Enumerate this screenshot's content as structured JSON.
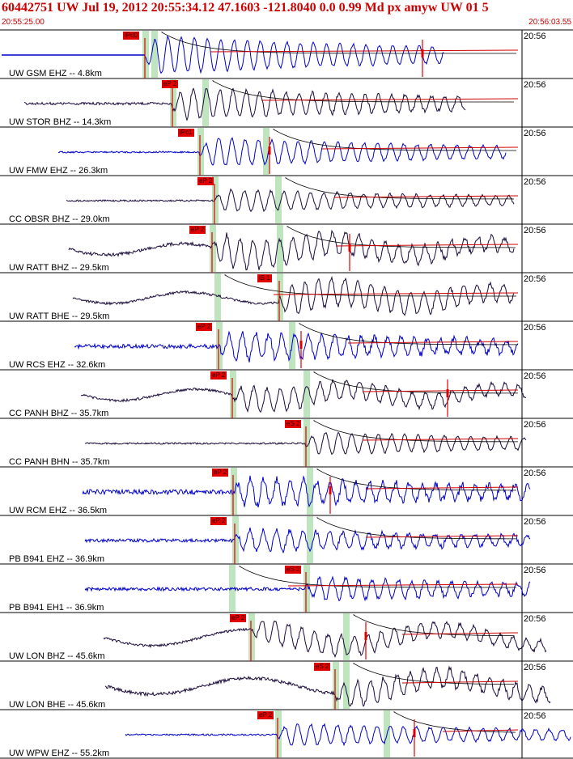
{
  "header": {
    "title": "60442751 UW Jul 19, 2012 20:55:34.12   47.1603 -121.8040  0.0 0.99 Md px amyw UW 01   5",
    "start_time": "20:55:25.00",
    "end_time": "20:56:03.55"
  },
  "colors": {
    "title": "#cc0000",
    "trace_blue": "#0000cc",
    "trace_dark": "#1a0a3a",
    "pick": "#e00000",
    "coda": "#cc0000",
    "window": "#bfe5bf"
  },
  "traces": [
    {
      "label": "UW GSM EHZ -- 4.8km",
      "time": "20:56",
      "color": "blue",
      "pick": "iPd0",
      "pick_index": 0
    },
    {
      "label": "UW STOR BHZ -- 14.3km",
      "time": "20:56",
      "color": "dark",
      "pick": "eP 2",
      "pick_index": 1
    },
    {
      "label": "UW FMW EHZ -- 26.3km",
      "time": "20:56",
      "color": "blue",
      "pick": "iPc1",
      "pick_index": 2
    },
    {
      "label": "CC OBSR BHZ -- 29.0km",
      "time": "20:56",
      "color": "dark",
      "pick": "eP 2",
      "pick_index": 3
    },
    {
      "label": "UW RATT BHZ -- 29.5km",
      "time": "20:56",
      "color": "dark",
      "pick": "eP 2",
      "pick_index": 4
    },
    {
      "label": "UW RATT BHE -- 29.5km",
      "time": "20:56",
      "color": "dark",
      "pick": "iS 1",
      "pick_index": 5
    },
    {
      "label": "UW RCS EHZ -- 32.6km",
      "time": "20:56",
      "color": "blue",
      "pick": "eP 2",
      "pick_index": 6
    },
    {
      "label": "CC PANH BHZ -- 35.7km",
      "time": "20:56",
      "color": "dark",
      "pick": "eP 2",
      "pick_index": 7
    },
    {
      "label": "CC PANH BHN -- 35.7km",
      "time": "20:56",
      "color": "dark",
      "pick": "eS 2",
      "pick_index": 8
    },
    {
      "label": "UW RCM EHZ -- 36.5km",
      "time": "20:56",
      "color": "blue",
      "pick": "eP 2",
      "pick_index": 9
    },
    {
      "label": "PB B941 EHZ -- 36.9km",
      "time": "20:56",
      "color": "blue",
      "pick": "eP 2",
      "pick_index": 10
    },
    {
      "label": "PB B941 EH1 -- 36.9km",
      "time": "20:56",
      "color": "blue",
      "pick": "eS 2",
      "pick_index": 11
    },
    {
      "label": "UW LON BHZ -- 45.6km",
      "time": "20:56",
      "color": "dark",
      "pick": "eP 2",
      "pick_index": 12
    },
    {
      "label": "UW LON BHE -- 45.6km",
      "time": "20:56",
      "color": "dark",
      "pick": "eS 2",
      "pick_index": 13
    },
    {
      "label": "UW WPW EHZ -- 55.2km",
      "time": "20:56",
      "color": "blue",
      "pick": "eP 2",
      "pick_index": 14
    }
  ]
}
